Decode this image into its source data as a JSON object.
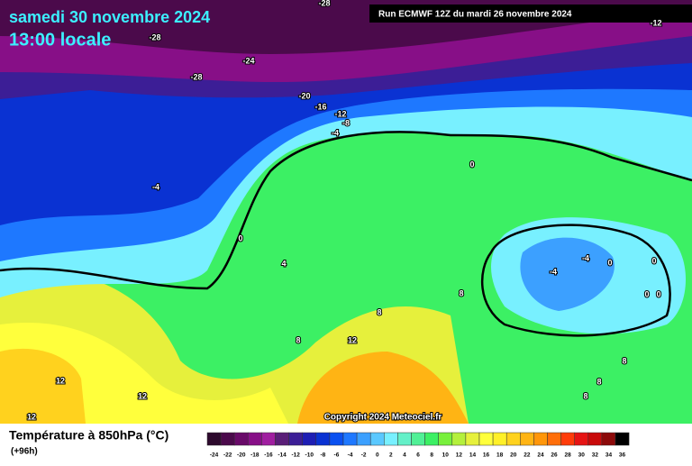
{
  "header": {
    "date": "samedi 30 novembre 2024",
    "time": "13:00 locale",
    "run": "Run ECMWF 12Z du mardi 26 novembre 2024"
  },
  "copyright": "Copyright 2024 Meteociel.fr",
  "footer": {
    "title": "Température à 850hPa (°C)",
    "lead": "(+96h)"
  },
  "legend": {
    "values": [
      -24,
      -22,
      -20,
      -18,
      -16,
      -14,
      -12,
      -10,
      -8,
      -6,
      -4,
      -2,
      0,
      2,
      4,
      6,
      8,
      10,
      12,
      14,
      16,
      18,
      20,
      22,
      24,
      26,
      28,
      30,
      32,
      34,
      36
    ],
    "colors": [
      "#2d0a2d",
      "#4b0a4b",
      "#690a69",
      "#870f87",
      "#a01ea0",
      "#5a1e78",
      "#3c1e96",
      "#1e1eb4",
      "#0a32d2",
      "#0a50f0",
      "#1e78ff",
      "#3ca0ff",
      "#5ac8ff",
      "#78f0ff",
      "#64f0c8",
      "#50f096",
      "#3cf064",
      "#78f03c",
      "#b4f03c",
      "#e6f03c",
      "#ffff3c",
      "#fff028",
      "#ffd21e",
      "#ffb414",
      "#ff960a",
      "#ff6e0a",
      "#ff3c0a",
      "#e61414",
      "#c80a0a",
      "#8c0a0a",
      "#000000"
    ]
  },
  "contour_labels": [
    -28,
    -28,
    -28,
    -24,
    -20,
    -16,
    -12,
    -8,
    -4,
    -4,
    0,
    4,
    0,
    8,
    8,
    12,
    8,
    12,
    12,
    12,
    -4,
    -4,
    0,
    0,
    0,
    0,
    8,
    8,
    8,
    -12
  ]
}
